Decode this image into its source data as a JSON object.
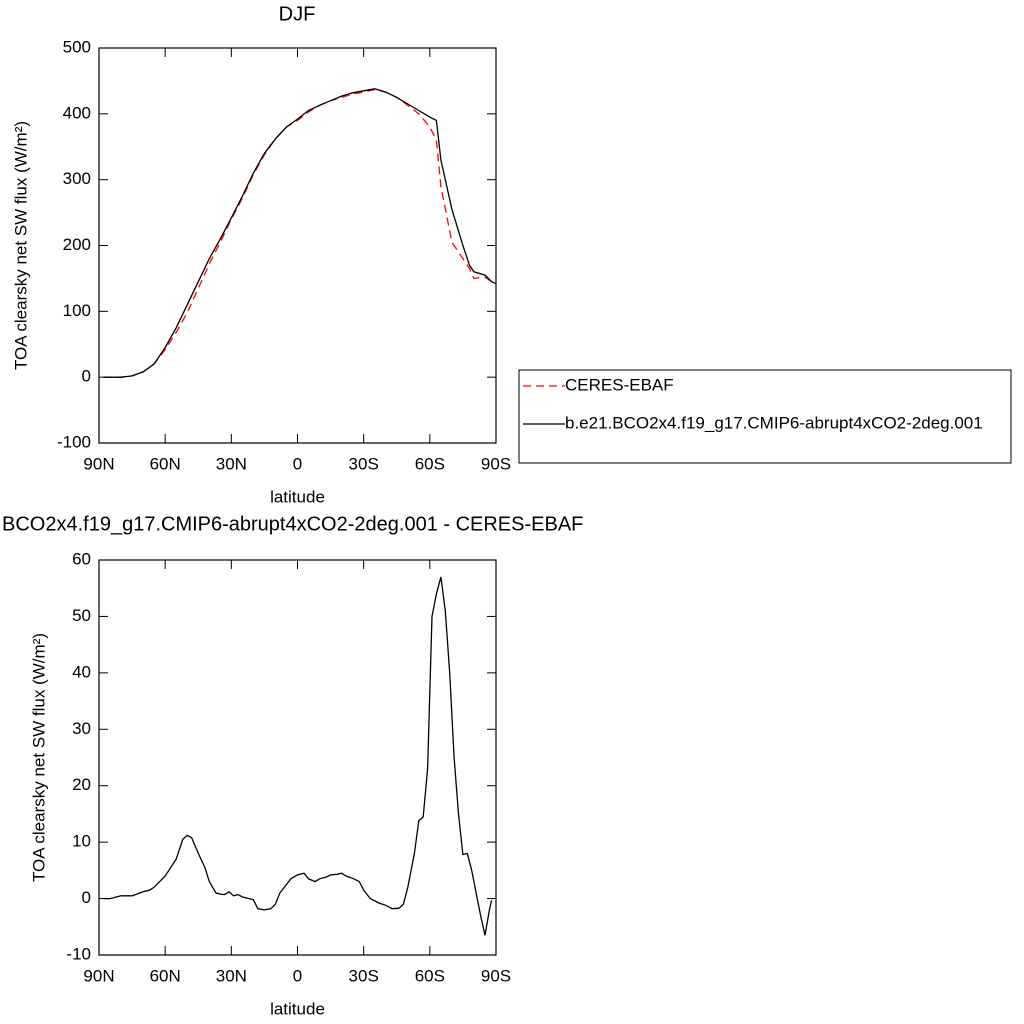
{
  "chart_data": [
    {
      "type": "line",
      "title": "DJF",
      "xlabel": "latitude",
      "ylabel": "TOA clearsky net SW flux (W/m²)",
      "xlim": [
        90,
        -90
      ],
      "xticks": [
        {
          "value": 90,
          "label": "90N"
        },
        {
          "value": 60,
          "label": "60N"
        },
        {
          "value": 30,
          "label": "30N"
        },
        0,
        {
          "value": -30,
          "label": "30S"
        },
        {
          "value": -60,
          "label": "60S"
        },
        {
          "value": -90,
          "label": "90S"
        }
      ],
      "ylim": [
        -100,
        500
      ],
      "yticks": [
        -100,
        0,
        100,
        200,
        300,
        400,
        500
      ],
      "legend": "right",
      "x": [
        88,
        85,
        80,
        75,
        70,
        65,
        60,
        55,
        50,
        45,
        40,
        35,
        30,
        25,
        20,
        15,
        10,
        5,
        0,
        -5,
        -10,
        -15,
        -20,
        -25,
        -30,
        -35,
        -40,
        -45,
        -50,
        -55,
        -60,
        -63,
        -65,
        -70,
        -75,
        -78,
        -80,
        -85,
        -88,
        -90
      ],
      "series": [
        {
          "name": "CERES-EBAF",
          "color": "#ff0000",
          "style": "dashed",
          "values": [
            0,
            0,
            0,
            2,
            8,
            20,
            42,
            68,
            98,
            135,
            172,
            205,
            240,
            272,
            308,
            338,
            362,
            380,
            390,
            403,
            413,
            420,
            425,
            430,
            433,
            437,
            433,
            425,
            413,
            400,
            380,
            360,
            290,
            205,
            180,
            165,
            150,
            152,
            145,
            142
          ]
        },
        {
          "name": "b.e21.BCO2x4.f19_g17.CMIP6-abrupt4xCO2-2deg.001",
          "color": "#000000",
          "style": "solid",
          "values": [
            0,
            0,
            0,
            2,
            8,
            20,
            45,
            75,
            110,
            145,
            180,
            210,
            242,
            275,
            310,
            340,
            362,
            380,
            392,
            405,
            413,
            420,
            427,
            432,
            435,
            438,
            433,
            425,
            415,
            405,
            395,
            390,
            330,
            255,
            200,
            170,
            160,
            155,
            145,
            142
          ]
        }
      ]
    },
    {
      "type": "line",
      "title": "BCO2x4.f19_g17.CMIP6-abrupt4xCO2-2deg.001 - CERES-EBAF",
      "xlabel": "latitude",
      "ylabel": "TOA clearsky net SW flux (W/m²)",
      "xlim": [
        90,
        -90
      ],
      "xticks": [
        {
          "value": 90,
          "label": "90N"
        },
        {
          "value": 60,
          "label": "60N"
        },
        {
          "value": 30,
          "label": "30N"
        },
        0,
        {
          "value": -30,
          "label": "30S"
        },
        {
          "value": -60,
          "label": "60S"
        },
        {
          "value": -90,
          "label": "90S"
        }
      ],
      "ylim": [
        -10,
        60
      ],
      "yticks": [
        -10,
        0,
        10,
        20,
        30,
        40,
        50,
        60
      ],
      "x": [
        88,
        85,
        80,
        75,
        70,
        67,
        65,
        60,
        55,
        52,
        50,
        48,
        45,
        42,
        40,
        37,
        35,
        33,
        31,
        29,
        27,
        25,
        22,
        20,
        18,
        15,
        12,
        10,
        8,
        5,
        3,
        0,
        -3,
        -5,
        -8,
        -10,
        -13,
        -15,
        -18,
        -20,
        -22,
        -25,
        -28,
        -30,
        -33,
        -37,
        -40,
        -43,
        -46,
        -48,
        -50,
        -53,
        -55,
        -57,
        -59,
        -61,
        -63,
        -65,
        -67,
        -69,
        -71,
        -73,
        -75,
        -77,
        -79,
        -81,
        -83,
        -85,
        -87,
        -88
      ],
      "series": [
        {
          "name": "b.e21.BCO2x4.f19_g17.CMIP6-abrupt4xCO2-2deg.001",
          "color": "#000000",
          "values": [
            0,
            0,
            0.5,
            0.5,
            1.2,
            1.5,
            2,
            4,
            7,
            10.5,
            11.2,
            10.8,
            8,
            5.5,
            3,
            1,
            0.8,
            0.7,
            1.2,
            0.5,
            0.7,
            0.3,
            0,
            -0.2,
            -1.8,
            -2,
            -1.8,
            -1,
            1,
            2.5,
            3.5,
            4.2,
            4.5,
            3.5,
            3,
            3.5,
            3.8,
            4.2,
            4.3,
            4.5,
            4,
            3.6,
            3,
            1.5,
            0,
            -0.8,
            -1.2,
            -1.8,
            -1.7,
            -1,
            2,
            8,
            13.8,
            14.5,
            23,
            50,
            54,
            57,
            51,
            40,
            25,
            15,
            7.8,
            8,
            5,
            1,
            -3,
            -6.5,
            -2,
            -0.3
          ]
        }
      ]
    }
  ]
}
